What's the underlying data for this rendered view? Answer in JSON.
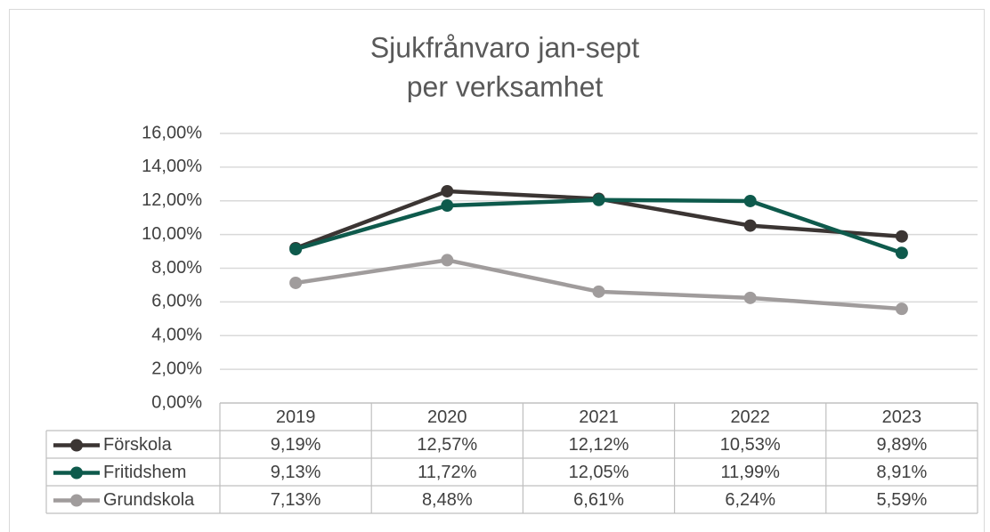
{
  "chart_data": {
    "type": "line",
    "title": [
      "Sjukfrånvaro jan-sept",
      "per verksamhet"
    ],
    "categories": [
      "2019",
      "2020",
      "2021",
      "2022",
      "2023"
    ],
    "series": [
      {
        "name": "Förskola",
        "color": "#3b3533",
        "values": [
          9.19,
          12.57,
          12.12,
          10.53,
          9.89
        ],
        "value_labels": [
          "9,19%",
          "12,57%",
          "12,12%",
          "10,53%",
          "9,89%"
        ]
      },
      {
        "name": "Fritidshem",
        "color": "#0e5a4c",
        "values": [
          9.13,
          11.72,
          12.05,
          11.99,
          8.91
        ],
        "value_labels": [
          "9,13%",
          "11,72%",
          "12,05%",
          "11,99%",
          "8,91%"
        ]
      },
      {
        "name": "Grundskola",
        "color": "#a09c9c",
        "values": [
          7.13,
          8.48,
          6.61,
          6.24,
          5.59
        ],
        "value_labels": [
          "7,13%",
          "8,48%",
          "6,61%",
          "6,24%",
          "5,59%"
        ]
      }
    ],
    "ylim": [
      0,
      16
    ],
    "yticks": [
      {
        "value": 0,
        "label": "0,00%"
      },
      {
        "value": 2,
        "label": "2,00%"
      },
      {
        "value": 4,
        "label": "4,00%"
      },
      {
        "value": 6,
        "label": "6,00%"
      },
      {
        "value": 8,
        "label": "8,00%"
      },
      {
        "value": 10,
        "label": "10,00%"
      },
      {
        "value": 12,
        "label": "12,00%"
      },
      {
        "value": 14,
        "label": "14,00%"
      },
      {
        "value": 16,
        "label": "16,00%"
      }
    ],
    "grid": true,
    "data_table": true
  }
}
